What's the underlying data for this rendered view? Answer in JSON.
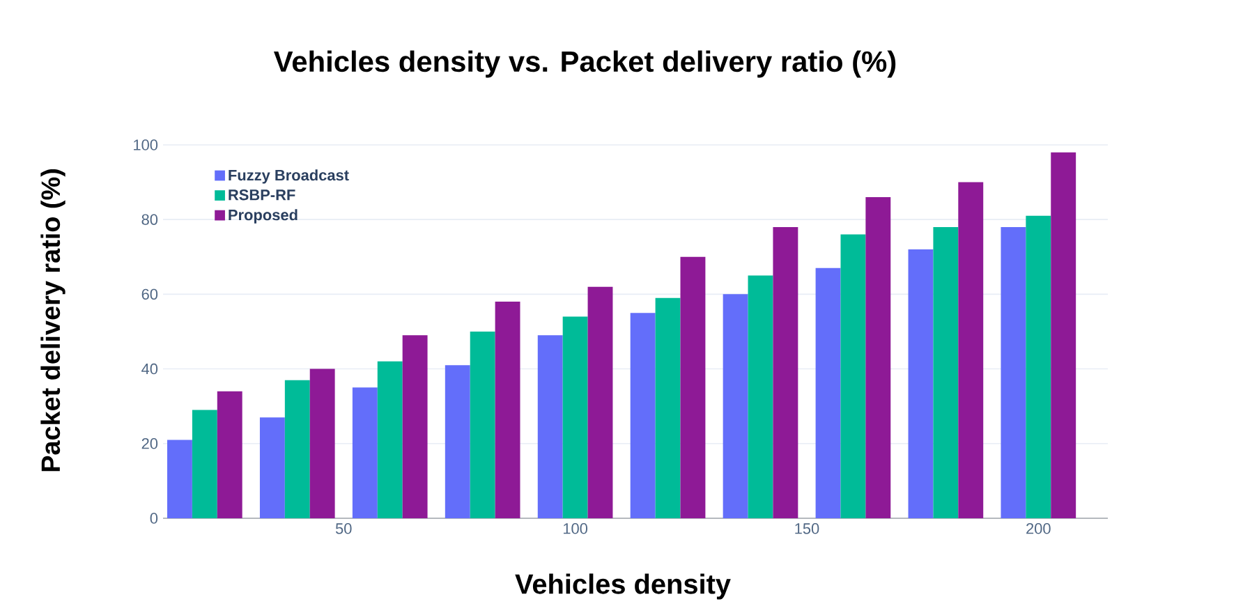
{
  "chart_data": {
    "type": "bar",
    "title": "Vehicles density vs. Packet delivery ratio (%)",
    "xlabel": "Vehicles density",
    "ylabel": "Packet delivery ratio (%)",
    "x": [
      20,
      40,
      60,
      80,
      100,
      120,
      140,
      160,
      180,
      200
    ],
    "series": [
      {
        "name": "Fuzzy Broadcast",
        "color": "#636efa",
        "values": [
          21,
          27,
          35,
          41,
          49,
          55,
          60,
          67,
          72,
          78
        ]
      },
      {
        "name": "RSBP-RF",
        "color": "#00bb98",
        "values": [
          29,
          37,
          42,
          50,
          54,
          59,
          65,
          76,
          78,
          81
        ]
      },
      {
        "name": "Proposed",
        "color": "#8e1a96",
        "values": [
          34,
          40,
          49,
          58,
          62,
          70,
          78,
          86,
          90,
          98
        ]
      }
    ],
    "xlim": [
      11,
      215
    ],
    "xticks": [
      50,
      100,
      150,
      200
    ],
    "ylim": [
      0,
      100
    ],
    "yticks": [
      0,
      20,
      40,
      60,
      80,
      100
    ],
    "grid": "y",
    "legend": "top left"
  }
}
